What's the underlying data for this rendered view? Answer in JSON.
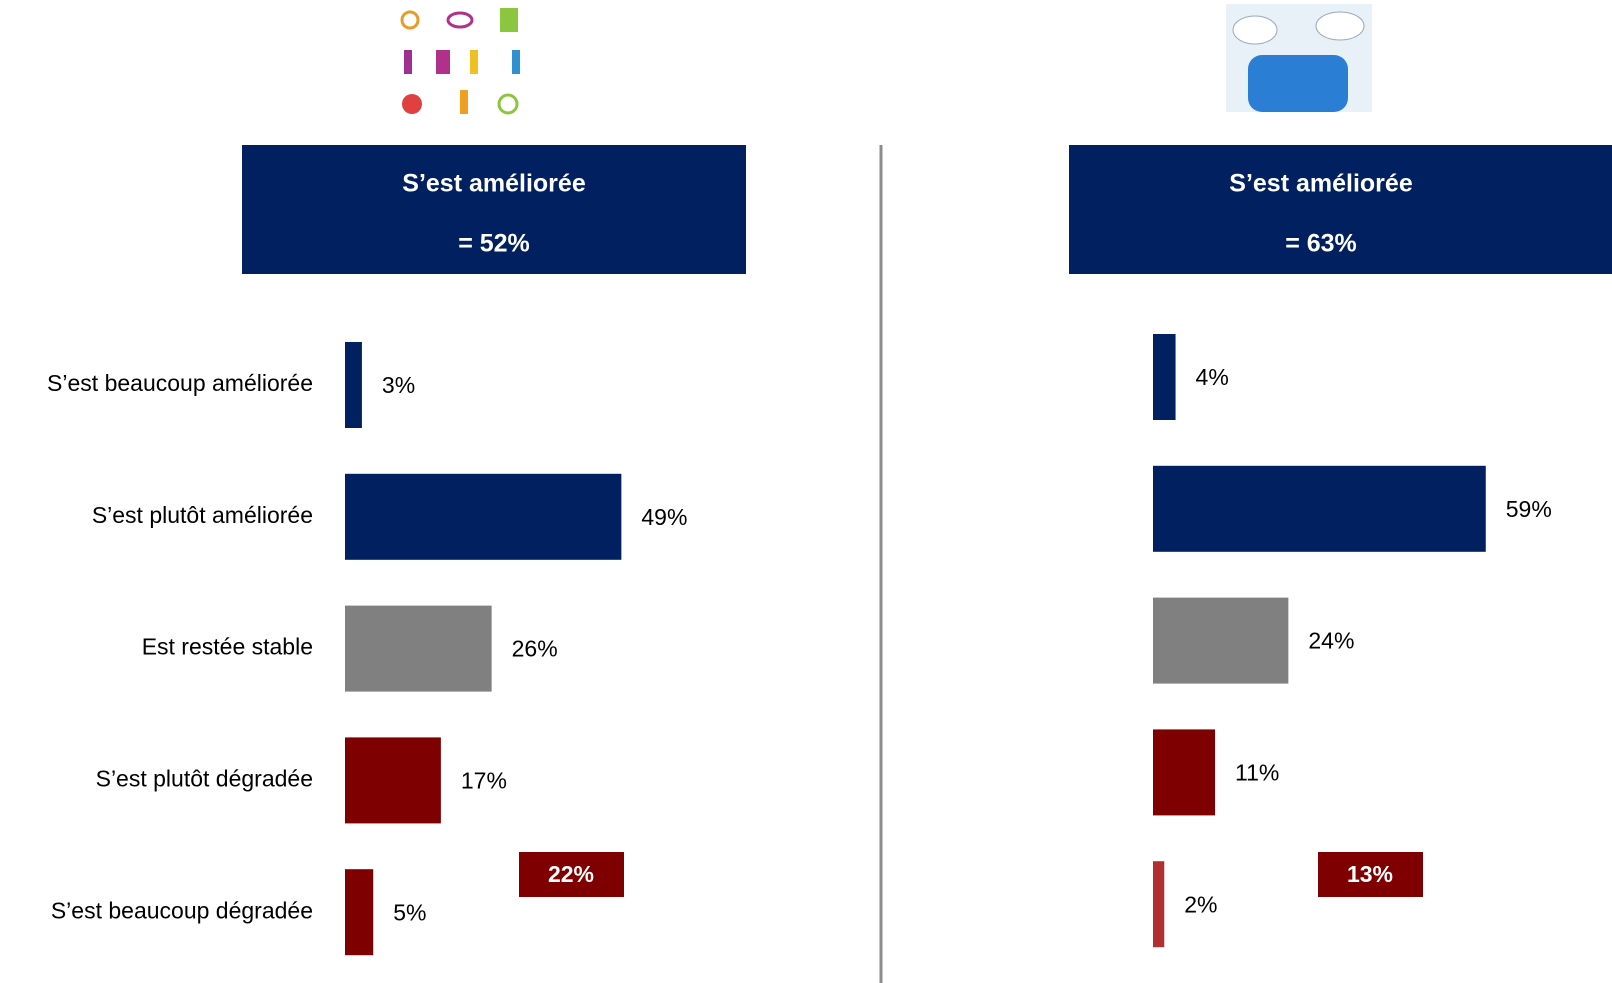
{
  "chart_data": [
    {
      "type": "bar",
      "orientation": "horizontal",
      "title": "S’est améliorée",
      "subtitle": "= 52%",
      "annotation": "22%",
      "annotation_color": "#7f0000",
      "header_color": "#002060",
      "categories": [
        "S’est beaucoup améliorée",
        "S’est plutôt améliorée",
        "Est restée stable",
        "S’est plutôt dégradée",
        "S’est beaucoup dégradée"
      ],
      "values": [
        3,
        49,
        26,
        17,
        5
      ],
      "value_labels": [
        "3%",
        "49%",
        "26%",
        "17%",
        "5%"
      ],
      "colors": [
        "#002060",
        "#002060",
        "#808080",
        "#7f0000",
        "#7f0000"
      ]
    },
    {
      "type": "bar",
      "orientation": "horizontal",
      "title": "S’est améliorée",
      "subtitle": "= 63%",
      "annotation": "13%",
      "annotation_color": "#7f0000",
      "header_color": "#002060",
      "categories": [
        null,
        null,
        null,
        null,
        null
      ],
      "values": [
        4,
        59,
        24,
        11,
        2
      ],
      "value_labels": [
        "4%",
        "59%",
        "24%",
        "11%",
        "2%"
      ],
      "colors": [
        "#002060",
        "#002060",
        "#808080",
        "#7f0000",
        "#b03030"
      ]
    }
  ]
}
